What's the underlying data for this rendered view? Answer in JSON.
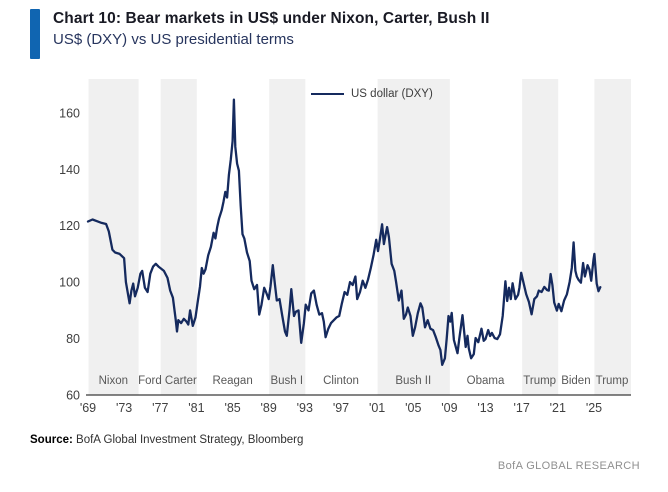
{
  "header": {
    "title": "Chart 10: Bear markets in US$ under Nixon, Carter, Bush II",
    "subtitle": "US$ (DXY) vs US presidential terms",
    "accent_color": "#1065b1"
  },
  "legend": {
    "label": "US dollar (DXY)"
  },
  "chart_data": {
    "type": "line",
    "title": "US$ (DXY) vs US presidential terms",
    "xlabel": "",
    "ylabel": "",
    "grid": false,
    "legend_position": "top-center",
    "line_color": "#152a5e",
    "band_color": "#f0f0f0",
    "axis_color": "#3a3a3a",
    "tick_color": "#404040",
    "president_label_color": "#595959",
    "xlim": [
      1969,
      2029.1
    ],
    "ylim": [
      60,
      172
    ],
    "y_ticks": [
      60,
      80,
      100,
      120,
      140,
      160
    ],
    "x_ticks": [
      {
        "year": 1969,
        "label": "'69"
      },
      {
        "year": 1973,
        "label": "'73"
      },
      {
        "year": 1977,
        "label": "'77"
      },
      {
        "year": 1981,
        "label": "'81"
      },
      {
        "year": 1985,
        "label": "'85"
      },
      {
        "year": 1989,
        "label": "'89"
      },
      {
        "year": 1993,
        "label": "'93"
      },
      {
        "year": 1997,
        "label": "'97"
      },
      {
        "year": 2001,
        "label": "'01"
      },
      {
        "year": 2005,
        "label": "'05"
      },
      {
        "year": 2009,
        "label": "'09"
      },
      {
        "year": 2013,
        "label": "'13"
      },
      {
        "year": 2017,
        "label": "'17"
      },
      {
        "year": 2021,
        "label": "'21"
      },
      {
        "year": 2025,
        "label": "'25"
      }
    ],
    "shaded_terms": [
      {
        "president": "Nixon",
        "start": 1969.05,
        "end": 1974.6
      },
      {
        "president": "Carter",
        "start": 1977.05,
        "end": 1981.05
      },
      {
        "president": "Bush I",
        "start": 1989.05,
        "end": 1993.05
      },
      {
        "president": "Bush II",
        "start": 2001.05,
        "end": 2009.05
      },
      {
        "president": "Trump",
        "start": 2017.05,
        "end": 2021.05
      },
      {
        "president": "Trump",
        "start": 2025.05,
        "end": 2029.1
      }
    ],
    "president_labels": [
      {
        "label": "Nixon",
        "year": 1971.8
      },
      {
        "label": "Ford Carter",
        "year": 1977.8
      },
      {
        "label": "Reagan",
        "year": 1985.0
      },
      {
        "label": "Bush I",
        "year": 1991.0
      },
      {
        "label": "Clinton",
        "year": 1997.0
      },
      {
        "label": "Bush II",
        "year": 2005.0
      },
      {
        "label": "Obama",
        "year": 2013.0
      },
      {
        "label": "Trump",
        "year": 2019.0
      },
      {
        "label": "Biden",
        "year": 2023.0
      },
      {
        "label": "Trump",
        "year": 2027.0
      }
    ],
    "series": [
      {
        "name": "US dollar (DXY)",
        "points": [
          [
            1969.0,
            121.5
          ],
          [
            1969.5,
            122.2
          ],
          [
            1970.0,
            121.6
          ],
          [
            1970.5,
            121.0
          ],
          [
            1971.0,
            120.6
          ],
          [
            1971.3,
            118.0
          ],
          [
            1971.7,
            111.5
          ],
          [
            1972.0,
            110.5
          ],
          [
            1972.5,
            110.0
          ],
          [
            1973.0,
            108.5
          ],
          [
            1973.2,
            100.0
          ],
          [
            1973.6,
            92.5
          ],
          [
            1973.8,
            97.0
          ],
          [
            1974.0,
            99.5
          ],
          [
            1974.2,
            95.0
          ],
          [
            1974.5,
            98.0
          ],
          [
            1974.8,
            103.0
          ],
          [
            1975.0,
            104.0
          ],
          [
            1975.3,
            98.0
          ],
          [
            1975.6,
            96.5
          ],
          [
            1975.9,
            103.0
          ],
          [
            1976.2,
            105.5
          ],
          [
            1976.5,
            106.5
          ],
          [
            1976.8,
            105.5
          ],
          [
            1977.0,
            105.0
          ],
          [
            1977.4,
            104.0
          ],
          [
            1977.8,
            101.5
          ],
          [
            1978.1,
            97.0
          ],
          [
            1978.4,
            94.5
          ],
          [
            1978.7,
            87.0
          ],
          [
            1978.85,
            82.5
          ],
          [
            1979.0,
            86.5
          ],
          [
            1979.3,
            85.5
          ],
          [
            1979.6,
            87.0
          ],
          [
            1979.9,
            86.0
          ],
          [
            1980.1,
            85.0
          ],
          [
            1980.3,
            90.0
          ],
          [
            1980.6,
            84.5
          ],
          [
            1980.9,
            87.5
          ],
          [
            1981.1,
            92.0
          ],
          [
            1981.4,
            98.5
          ],
          [
            1981.6,
            105.0
          ],
          [
            1981.8,
            103.0
          ],
          [
            1982.0,
            104.5
          ],
          [
            1982.3,
            109.5
          ],
          [
            1982.6,
            112.5
          ],
          [
            1982.9,
            117.5
          ],
          [
            1983.1,
            115.5
          ],
          [
            1983.3,
            119.5
          ],
          [
            1983.5,
            122.5
          ],
          [
            1983.8,
            125.5
          ],
          [
            1984.0,
            128.5
          ],
          [
            1984.2,
            132.0
          ],
          [
            1984.4,
            130.0
          ],
          [
            1984.6,
            138.0
          ],
          [
            1984.8,
            143.5
          ],
          [
            1985.0,
            150.0
          ],
          [
            1985.15,
            164.7
          ],
          [
            1985.3,
            148.0
          ],
          [
            1985.5,
            142.0
          ],
          [
            1985.7,
            139.5
          ],
          [
            1985.9,
            127.0
          ],
          [
            1986.1,
            117.0
          ],
          [
            1986.3,
            115.5
          ],
          [
            1986.6,
            110.5
          ],
          [
            1986.9,
            107.5
          ],
          [
            1987.1,
            100.5
          ],
          [
            1987.4,
            97.5
          ],
          [
            1987.7,
            99.0
          ],
          [
            1987.95,
            88.5
          ],
          [
            1988.2,
            92.0
          ],
          [
            1988.5,
            98.0
          ],
          [
            1988.7,
            96.5
          ],
          [
            1989.0,
            94.0
          ],
          [
            1989.2,
            98.5
          ],
          [
            1989.45,
            106.0
          ],
          [
            1989.7,
            99.0
          ],
          [
            1989.9,
            93.5
          ],
          [
            1990.2,
            94.0
          ],
          [
            1990.5,
            88.0
          ],
          [
            1990.8,
            82.5
          ],
          [
            1991.0,
            81.0
          ],
          [
            1991.3,
            90.0
          ],
          [
            1991.5,
            97.5
          ],
          [
            1991.8,
            88.0
          ],
          [
            1992.0,
            89.5
          ],
          [
            1992.3,
            90.0
          ],
          [
            1992.6,
            78.5
          ],
          [
            1992.9,
            85.5
          ],
          [
            1993.1,
            92.0
          ],
          [
            1993.4,
            90.0
          ],
          [
            1993.7,
            96.0
          ],
          [
            1994.0,
            97.0
          ],
          [
            1994.3,
            92.0
          ],
          [
            1994.6,
            88.5
          ],
          [
            1994.9,
            89.0
          ],
          [
            1995.1,
            86.0
          ],
          [
            1995.3,
            80.5
          ],
          [
            1995.6,
            83.5
          ],
          [
            1995.9,
            85.5
          ],
          [
            1996.2,
            86.5
          ],
          [
            1996.5,
            87.5
          ],
          [
            1996.8,
            88.0
          ],
          [
            1997.1,
            92.5
          ],
          [
            1997.4,
            96.5
          ],
          [
            1997.7,
            95.5
          ],
          [
            1998.0,
            100.0
          ],
          [
            1998.3,
            99.0
          ],
          [
            1998.6,
            102.0
          ],
          [
            1998.8,
            94.0
          ],
          [
            1999.1,
            96.5
          ],
          [
            1999.4,
            100.5
          ],
          [
            1999.7,
            98.0
          ],
          [
            2000.0,
            101.0
          ],
          [
            2000.3,
            105.0
          ],
          [
            2000.6,
            109.5
          ],
          [
            2000.9,
            115.0
          ],
          [
            2001.1,
            111.0
          ],
          [
            2001.3,
            115.0
          ],
          [
            2001.55,
            120.5
          ],
          [
            2001.75,
            113.5
          ],
          [
            2001.95,
            117.0
          ],
          [
            2002.1,
            119.5
          ],
          [
            2002.3,
            116.0
          ],
          [
            2002.6,
            106.5
          ],
          [
            2002.9,
            104.0
          ],
          [
            2003.1,
            100.0
          ],
          [
            2003.4,
            93.5
          ],
          [
            2003.7,
            97.0
          ],
          [
            2003.95,
            87.0
          ],
          [
            2004.2,
            88.5
          ],
          [
            2004.4,
            91.0
          ],
          [
            2004.7,
            88.0
          ],
          [
            2004.95,
            81.0
          ],
          [
            2005.2,
            84.0
          ],
          [
            2005.5,
            89.0
          ],
          [
            2005.8,
            92.5
          ],
          [
            2006.0,
            91.0
          ],
          [
            2006.3,
            84.0
          ],
          [
            2006.6,
            86.5
          ],
          [
            2006.9,
            83.5
          ],
          [
            2007.2,
            83.0
          ],
          [
            2007.5,
            80.5
          ],
          [
            2007.8,
            77.5
          ],
          [
            2008.0,
            76.0
          ],
          [
            2008.2,
            70.7
          ],
          [
            2008.5,
            73.0
          ],
          [
            2008.7,
            80.0
          ],
          [
            2008.9,
            88.0
          ],
          [
            2009.1,
            86.0
          ],
          [
            2009.25,
            89.1
          ],
          [
            2009.5,
            79.5
          ],
          [
            2009.9,
            74.8
          ],
          [
            2010.1,
            80.0
          ],
          [
            2010.45,
            88.3
          ],
          [
            2010.8,
            77.0
          ],
          [
            2011.0,
            81.0
          ],
          [
            2011.15,
            76.5
          ],
          [
            2011.4,
            73.0
          ],
          [
            2011.7,
            74.5
          ],
          [
            2011.9,
            80.2
          ],
          [
            2012.2,
            78.7
          ],
          [
            2012.55,
            83.5
          ],
          [
            2012.8,
            79.2
          ],
          [
            2013.0,
            79.8
          ],
          [
            2013.3,
            83.0
          ],
          [
            2013.5,
            80.9
          ],
          [
            2013.7,
            82.0
          ],
          [
            2014.0,
            80.2
          ],
          [
            2014.3,
            79.8
          ],
          [
            2014.6,
            81.5
          ],
          [
            2014.9,
            88.0
          ],
          [
            2015.2,
            100.3
          ],
          [
            2015.4,
            93.3
          ],
          [
            2015.6,
            98.0
          ],
          [
            2015.8,
            94.0
          ],
          [
            2016.0,
            99.6
          ],
          [
            2016.3,
            94.0
          ],
          [
            2016.6,
            95.5
          ],
          [
            2016.75,
            98.0
          ],
          [
            2016.95,
            103.3
          ],
          [
            2017.2,
            99.8
          ],
          [
            2017.5,
            95.7
          ],
          [
            2017.8,
            93.0
          ],
          [
            2018.1,
            88.6
          ],
          [
            2018.4,
            94.0
          ],
          [
            2018.7,
            95.0
          ],
          [
            2018.9,
            97.0
          ],
          [
            2019.2,
            96.5
          ],
          [
            2019.5,
            98.3
          ],
          [
            2019.8,
            97.2
          ],
          [
            2020.0,
            97.0
          ],
          [
            2020.2,
            102.9
          ],
          [
            2020.4,
            99.0
          ],
          [
            2020.6,
            92.8
          ],
          [
            2020.9,
            89.9
          ],
          [
            2021.1,
            92.3
          ],
          [
            2021.4,
            89.7
          ],
          [
            2021.7,
            93.5
          ],
          [
            2022.0,
            95.7
          ],
          [
            2022.3,
            100.0
          ],
          [
            2022.55,
            105.0
          ],
          [
            2022.75,
            114.1
          ],
          [
            2022.95,
            104.0
          ],
          [
            2023.1,
            102.0
          ],
          [
            2023.3,
            100.8
          ],
          [
            2023.55,
            99.8
          ],
          [
            2023.8,
            106.8
          ],
          [
            2024.0,
            102.0
          ],
          [
            2024.3,
            106.0
          ],
          [
            2024.5,
            104.5
          ],
          [
            2024.7,
            100.5
          ],
          [
            2024.95,
            108.0
          ],
          [
            2025.05,
            110.0
          ],
          [
            2025.3,
            99.5
          ],
          [
            2025.5,
            96.8
          ],
          [
            2025.7,
            98.2
          ]
        ]
      }
    ]
  },
  "footer": {
    "source_label": "Source:",
    "source_text": "BofA Global Investment Strategy, Bloomberg",
    "brand": "BofA GLOBAL RESEARCH"
  }
}
